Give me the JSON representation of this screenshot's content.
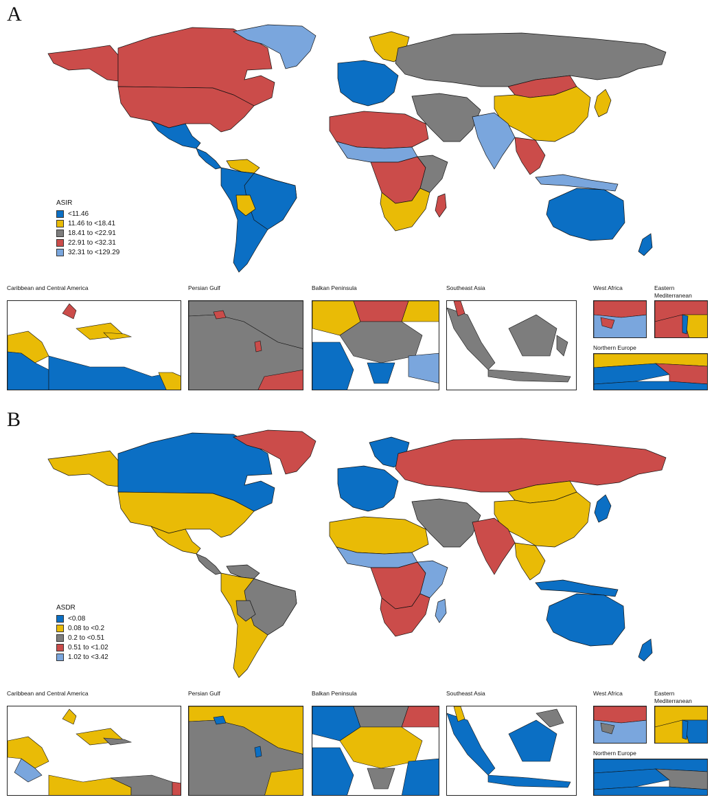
{
  "colors": {
    "blue": "#0b6fc4",
    "yellow": "#e9bb06",
    "gray": "#7d7d7d",
    "red": "#cb4c4a",
    "lightblue": "#7aa6dd",
    "outline": "#111111"
  },
  "panels": [
    {
      "letter": "A",
      "legend": {
        "title": "ASIR",
        "items": [
          {
            "label": "<11.46",
            "color": "#0b6fc4"
          },
          {
            "label": "11.46 to <18.41",
            "color": "#e9bb06"
          },
          {
            "label": "18.41 to <22.91",
            "color": "#7d7d7d"
          },
          {
            "label": "22.91 to <32.31",
            "color": "#cb4c4a"
          },
          {
            "label": "32.31 to <129.29",
            "color": "#7aa6dd"
          }
        ]
      },
      "insets": [
        {
          "title": "Caribbean and Central America"
        },
        {
          "title": "Persian Gulf"
        },
        {
          "title": "Balkan Peninsula"
        },
        {
          "title": "Southeast Asia"
        },
        {
          "title": "West Africa"
        },
        {
          "title": "Eastern Mediterranean"
        },
        {
          "title": "Northern Europe"
        }
      ]
    },
    {
      "letter": "B",
      "legend": {
        "title": "ASDR",
        "items": [
          {
            "label": "<0.08",
            "color": "#0b6fc4"
          },
          {
            "label": "0.08 to <0.2",
            "color": "#e9bb06"
          },
          {
            "label": "0.2 to <0.51",
            "color": "#7d7d7d"
          },
          {
            "label": "0.51 to <1.02",
            "color": "#cb4c4a"
          },
          {
            "label": "1.02 to <3.42",
            "color": "#7aa6dd"
          }
        ]
      },
      "insets": [
        {
          "title": "Caribbean and Central America"
        },
        {
          "title": "Persian Gulf"
        },
        {
          "title": "Balkan Peninsula"
        },
        {
          "title": "Southeast Asia"
        },
        {
          "title": "West Africa"
        },
        {
          "title": "Eastern Mediterranean"
        },
        {
          "title": "Northern Europe"
        }
      ]
    }
  ],
  "map_a": {
    "greenland": "lightblue",
    "canada": "red",
    "usa": "red",
    "alaska": "red",
    "mexico": "blue",
    "central_america": "blue",
    "south_america": "blue",
    "brazil": "blue",
    "bolivia": "yellow",
    "venezuela": "yellow",
    "europe_west": "blue",
    "scandinavia": "yellow",
    "russia": "gray",
    "china": "yellow",
    "mongolia": "red",
    "india": "lightblue",
    "middle_east": "gray",
    "north_africa": "red",
    "sahel": "lightblue",
    "central_africa": "red",
    "east_africa": "gray",
    "southern_africa": "yellow",
    "madagascar": "red",
    "se_asia": "red",
    "japan": "yellow",
    "indonesia": "lightblue",
    "australia": "blue",
    "new_zealand": "blue"
  },
  "map_b": {
    "greenland": "red",
    "canada": "blue",
    "usa": "yellow",
    "alaska": "yellow",
    "mexico": "yellow",
    "central_america": "gray",
    "south_america": "yellow",
    "brazil": "gray",
    "bolivia": "gray",
    "venezuela": "gray",
    "europe_west": "blue",
    "scandinavia": "blue",
    "russia": "red",
    "china": "yellow",
    "mongolia": "yellow",
    "india": "red",
    "middle_east": "gray",
    "north_africa": "yellow",
    "sahel": "lightblue",
    "central_africa": "red",
    "east_africa": "lightblue",
    "southern_africa": "red",
    "madagascar": "lightblue",
    "se_asia": "yellow",
    "japan": "blue",
    "indonesia": "blue",
    "australia": "blue",
    "new_zealand": "blue"
  }
}
